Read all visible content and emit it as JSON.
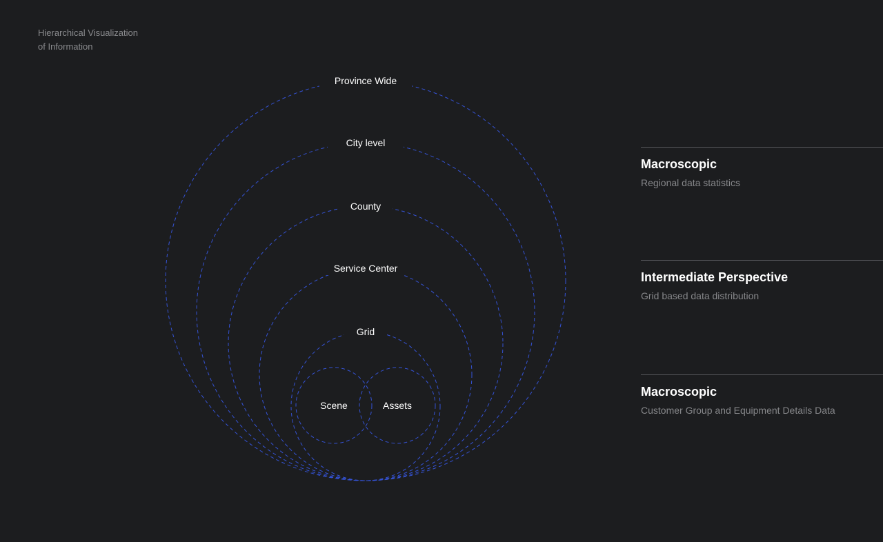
{
  "title_lines": [
    "Hierarchical Visualization",
    "of Information"
  ],
  "colors": {
    "background": "#1c1d1f",
    "circle_stroke": "#3553d6",
    "text": "#ffffff",
    "muted": "#86878a"
  },
  "circles": [
    {
      "label": "Province Wide"
    },
    {
      "label": "City level"
    },
    {
      "label": "County"
    },
    {
      "label": "Service Center"
    },
    {
      "label": "Grid"
    },
    {
      "label": "Scene"
    },
    {
      "label": "Assets"
    }
  ],
  "sections": [
    {
      "heading": "Macroscopic",
      "description": "Regional data statistics"
    },
    {
      "heading": "Intermediate Perspective",
      "description": "Grid based data distribution"
    },
    {
      "heading": "Macroscopic",
      "description": "Customer Group and Equipment Details Data"
    }
  ]
}
